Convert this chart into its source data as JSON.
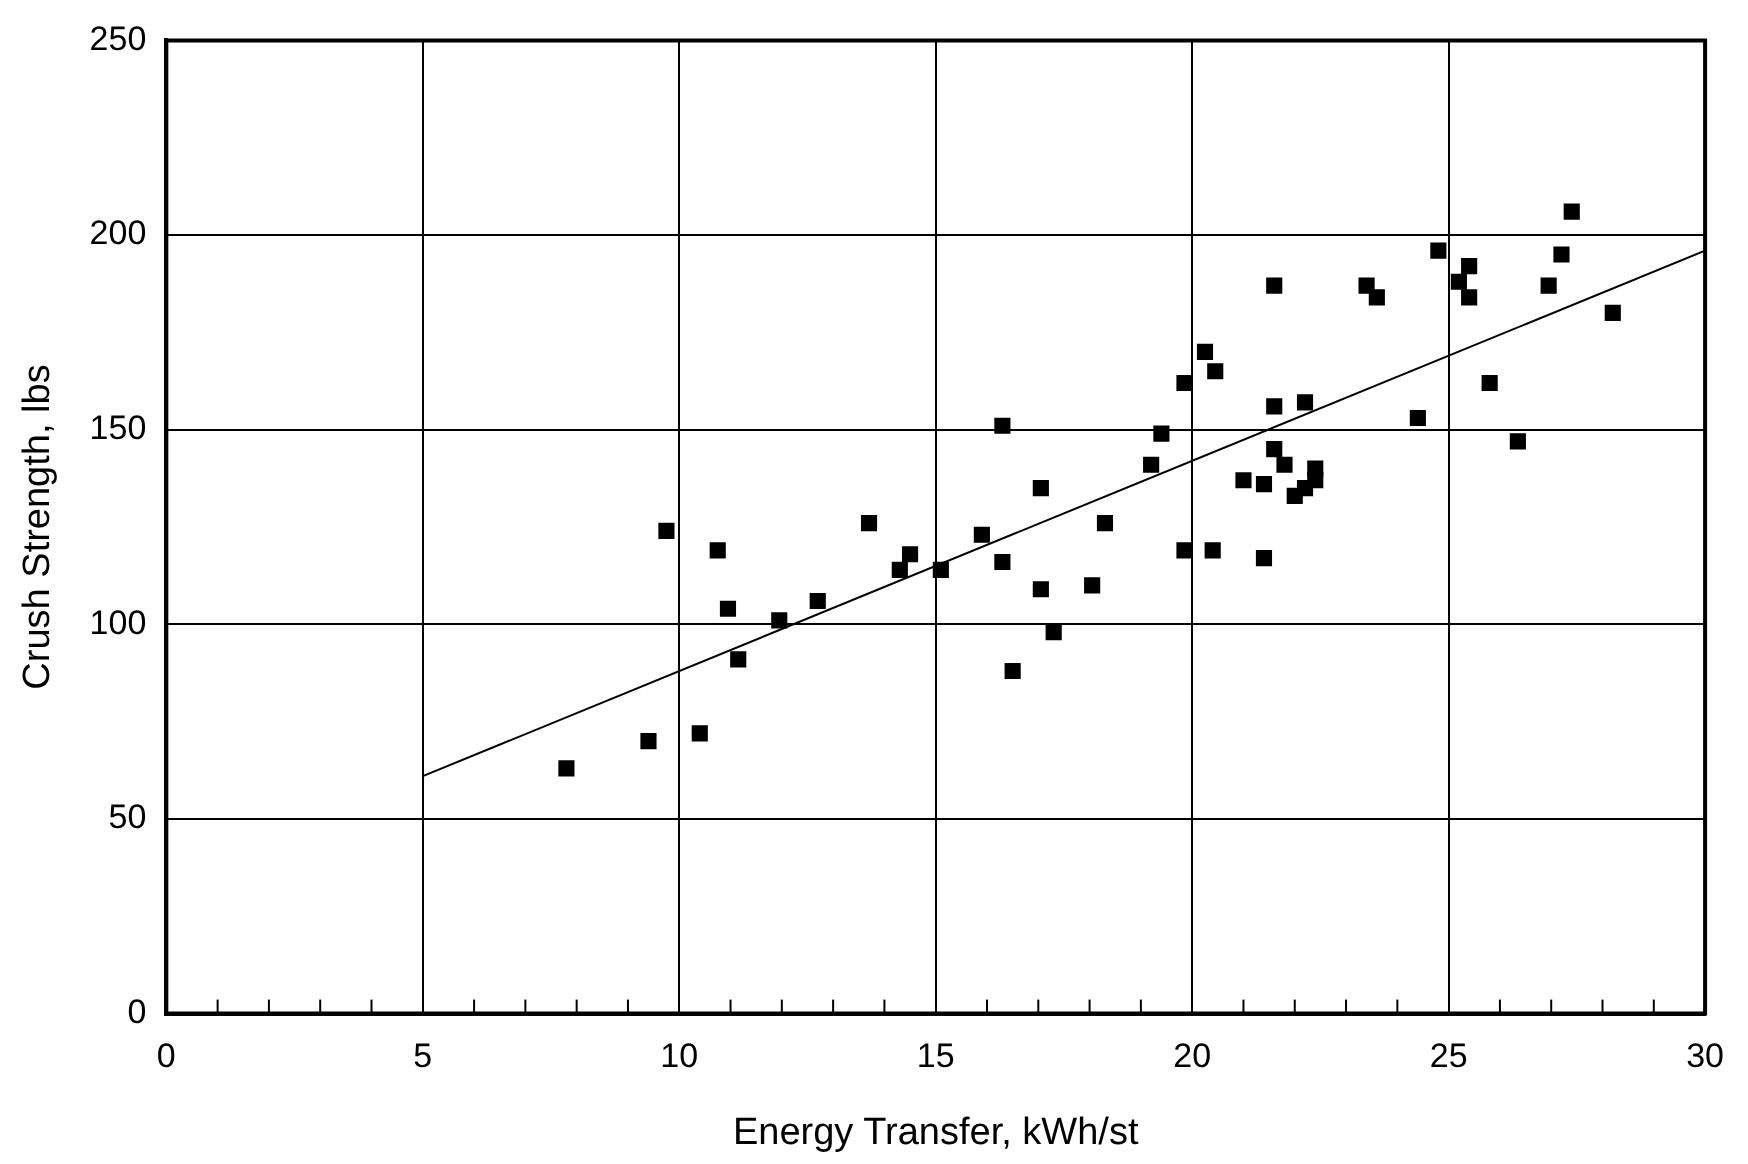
{
  "chart_data": {
    "type": "scatter",
    "xlabel": "Energy Transfer, kWh/st",
    "ylabel": "Crush Strength, lbs",
    "series": [
      {
        "color": "#000000",
        "marker": "square",
        "x": [
          7.8,
          9.4,
          10.4,
          9.75,
          10.75,
          10.95,
          11.15,
          11.95,
          12.7,
          13.7,
          14.3,
          14.5,
          15.1,
          15.9,
          16.3,
          16.3,
          16.5,
          17.05,
          17.05,
          17.3,
          18.05,
          18.3,
          19.2,
          19.4,
          19.85,
          19.85,
          20.25,
          20.45,
          20.4,
          21.0,
          21.4,
          21.4,
          21.6,
          21.6,
          21.6,
          21.8,
          22.0,
          22.2,
          22.2,
          22.4,
          22.4,
          23.4,
          23.6,
          24.4,
          24.8,
          25.2,
          25.4,
          25.4,
          25.8,
          26.35,
          26.95,
          27.2,
          27.4,
          28.2
        ],
        "values": [
          63,
          70,
          72,
          124,
          119,
          104,
          91,
          101,
          106,
          126,
          114,
          118,
          114,
          123,
          116,
          151,
          88,
          109,
          135,
          98,
          110,
          126,
          141,
          149,
          119,
          162,
          170,
          165,
          119,
          137,
          136,
          117,
          187,
          156,
          145,
          141,
          133,
          135,
          157,
          140,
          137,
          187,
          184,
          153,
          196,
          188,
          192,
          184,
          162,
          147,
          187,
          195,
          206,
          180
        ]
      },
      {
        "type": "line",
        "color": "#000000",
        "marker": "none",
        "x": [
          5,
          30
        ],
        "values": [
          61,
          196
        ]
      }
    ],
    "xlim": [
      0,
      30
    ],
    "ylim": [
      0,
      250
    ],
    "xticks": [
      0,
      {
        "value": 1,
        "label": null
      },
      {
        "value": 2,
        "label": null
      },
      {
        "value": 3,
        "label": null
      },
      {
        "value": 4,
        "label": null
      },
      5,
      {
        "value": 6,
        "label": null
      },
      {
        "value": 7,
        "label": null
      },
      {
        "value": 8,
        "label": null
      },
      {
        "value": 9,
        "label": null
      },
      10,
      {
        "value": 11,
        "label": null
      },
      {
        "value": 12,
        "label": null
      },
      {
        "value": 13,
        "label": null
      },
      {
        "value": 14,
        "label": null
      },
      15,
      {
        "value": 16,
        "label": null
      },
      {
        "value": 17,
        "label": null
      },
      {
        "value": 18,
        "label": null
      },
      {
        "value": 19,
        "label": null
      },
      20,
      {
        "value": 21,
        "label": null
      },
      {
        "value": 22,
        "label": null
      },
      {
        "value": 23,
        "label": null
      },
      {
        "value": 24,
        "label": null
      },
      25,
      {
        "value": 26,
        "label": null
      },
      {
        "value": 27,
        "label": null
      },
      {
        "value": 28,
        "label": null
      },
      {
        "value": 29,
        "label": null
      },
      30
    ],
    "yticks": [
      0,
      50,
      100,
      150,
      200,
      250
    ],
    "grid": true
  }
}
